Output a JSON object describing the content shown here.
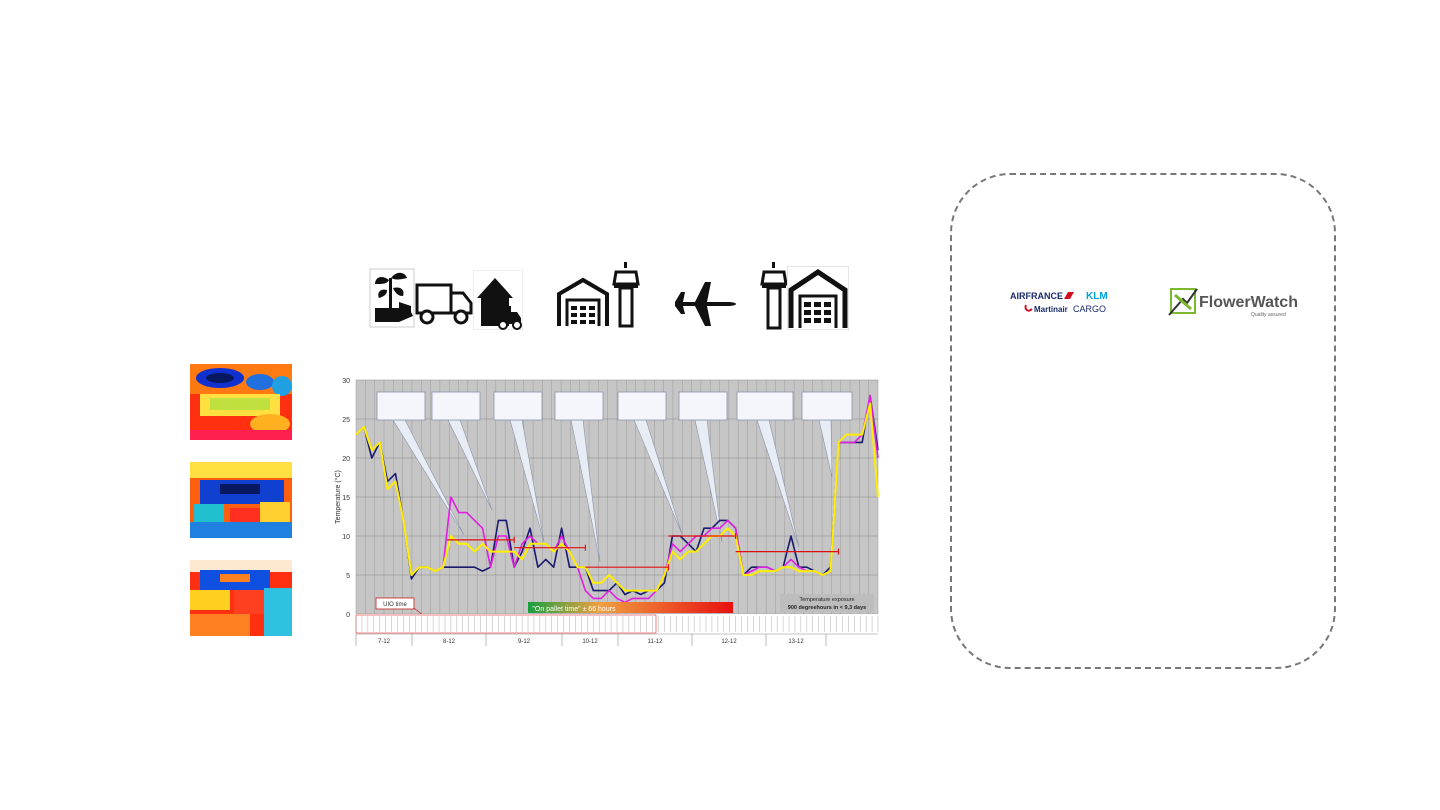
{
  "process_icons": [
    "seedling-hand-icon",
    "delivery-truck-icon",
    "warehouse-truck-icon",
    "cold-store-icon",
    "control-tower-icon",
    "airplane-icon",
    "control-tower-icon",
    "cold-store-icon"
  ],
  "logos": {
    "afk_line1": "AIRFRANCE",
    "afk_line1b": "KLM",
    "afk_line2": "Martinair",
    "afk_line2b": "CARGO",
    "fw_name": "FlowerWatch",
    "fw_tagline": "Quality assured"
  },
  "chart_data": {
    "type": "line",
    "ylabel": "Temperature (°C)",
    "ylim": [
      0,
      30
    ],
    "yticks": [
      0,
      5,
      10,
      15,
      20,
      25,
      30
    ],
    "grid": true,
    "days": [
      "7-12",
      "8-12",
      "9-12",
      "10-12",
      "11-12",
      "12-12",
      "13-12"
    ],
    "annotations": {
      "uio_time": "UIO time",
      "on_pallet": "\"On pallet time\" ± 66 hours",
      "exposure_title": "Temperature exposure",
      "exposure_value": "900 degreehours in < 9,3 days"
    },
    "series": [
      {
        "color": "#1a1a6e",
        "values": [
          23,
          24,
          20,
          22,
          17,
          18,
          12,
          4.5,
          6,
          6,
          5.5,
          6,
          6,
          6,
          6,
          6,
          5.5,
          6,
          12,
          12,
          6,
          8,
          11,
          6,
          7,
          6,
          11,
          6,
          6,
          6,
          3,
          3,
          3,
          4,
          2.5,
          3,
          2.5,
          3,
          3,
          4,
          10,
          10,
          9,
          8,
          11,
          11,
          12,
          12,
          11,
          5,
          6,
          6,
          6,
          5.5,
          6,
          10,
          6,
          6,
          5.5,
          5,
          6,
          22,
          22,
          22,
          22,
          28,
          21
        ]
      },
      {
        "color": "#e020e0",
        "values": [
          23,
          24,
          21,
          22,
          16,
          17,
          12,
          5,
          6,
          6,
          5.5,
          6,
          15,
          13,
          13,
          12,
          11,
          6,
          10,
          10,
          6,
          9,
          10,
          9,
          9,
          8,
          10,
          8,
          6,
          3,
          2,
          2,
          3,
          2,
          1.5,
          2,
          2,
          2,
          3,
          5,
          9,
          8,
          9,
          10,
          10,
          11,
          11,
          12,
          11,
          5,
          5.5,
          6,
          6,
          5.5,
          6,
          7,
          6,
          5.5,
          5.5,
          5,
          5.5,
          22,
          22,
          22,
          23,
          28,
          20
        ]
      },
      {
        "color": "#ffee00",
        "values": [
          23,
          24,
          21,
          22,
          16,
          17,
          12,
          5,
          6,
          6,
          5.5,
          6,
          10,
          9,
          9,
          8,
          9,
          8,
          8,
          8,
          8,
          7,
          9,
          9,
          9,
          8,
          9,
          8,
          6,
          6,
          4,
          4,
          5,
          4,
          3,
          3,
          3,
          3,
          3,
          5,
          8,
          7,
          8,
          8,
          9,
          10,
          10,
          11,
          10,
          5,
          5,
          5.5,
          5.5,
          5.5,
          6,
          6,
          5.5,
          5.5,
          5.5,
          5,
          5.5,
          22,
          23,
          23,
          23,
          27,
          15
        ]
      }
    ],
    "avg_segments": [
      {
        "from": 11.5,
        "to": 20,
        "y": 9.5
      },
      {
        "from": 20,
        "to": 29,
        "y": 8.5
      },
      {
        "from": 29,
        "to": 39.5,
        "y": 6
      },
      {
        "from": 39.5,
        "to": 48,
        "y": 10
      },
      {
        "from": 48,
        "to": 61,
        "y": 8
      }
    ]
  }
}
